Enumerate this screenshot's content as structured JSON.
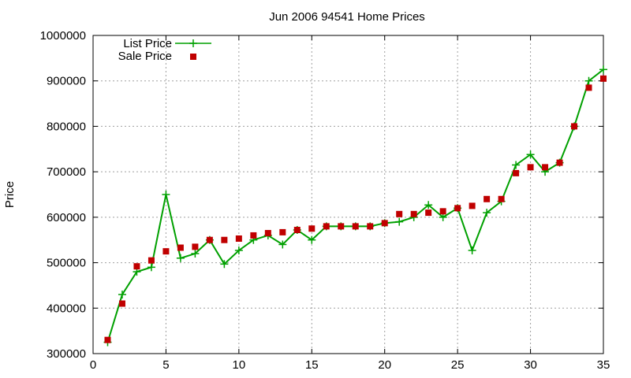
{
  "chart_data": {
    "type": "line",
    "title": "Jun 2006 94541 Home Prices",
    "xlabel": "",
    "ylabel": "Price",
    "xlim": [
      0,
      35
    ],
    "ylim": [
      300000,
      1000000
    ],
    "x_ticks": [
      0,
      5,
      10,
      15,
      20,
      25,
      30,
      35
    ],
    "y_ticks": [
      300000,
      400000,
      500000,
      600000,
      700000,
      800000,
      900000,
      1000000
    ],
    "grid": true,
    "legend_position": "top-left",
    "x": [
      1,
      2,
      3,
      4,
      5,
      6,
      7,
      8,
      9,
      10,
      11,
      12,
      13,
      14,
      15,
      16,
      17,
      18,
      19,
      20,
      21,
      22,
      23,
      24,
      25,
      26,
      27,
      28,
      29,
      30,
      31,
      32,
      33,
      34,
      35
    ],
    "series": [
      {
        "name": "List Price",
        "style": "line-cross",
        "color": "#00a000",
        "values": [
          325000,
          430000,
          480000,
          490000,
          650000,
          510000,
          520000,
          550000,
          497000,
          527000,
          550000,
          560000,
          540000,
          572000,
          550000,
          580000,
          580000,
          580000,
          580000,
          587000,
          590000,
          600000,
          627000,
          600000,
          620000,
          527000,
          610000,
          635000,
          715000,
          738000,
          700000,
          720000,
          800000,
          900000,
          925000
        ]
      },
      {
        "name": "Sale Price",
        "style": "square",
        "color": "#c00000",
        "values": [
          330000,
          410000,
          492000,
          505000,
          525000,
          533000,
          535000,
          550000,
          550000,
          553000,
          560000,
          565000,
          567000,
          572000,
          575000,
          580000,
          580000,
          580000,
          580000,
          587000,
          607000,
          607000,
          610000,
          613000,
          620000,
          625000,
          640000,
          640000,
          697000,
          710000,
          710000,
          720000,
          800000,
          885000,
          905000
        ]
      }
    ]
  }
}
